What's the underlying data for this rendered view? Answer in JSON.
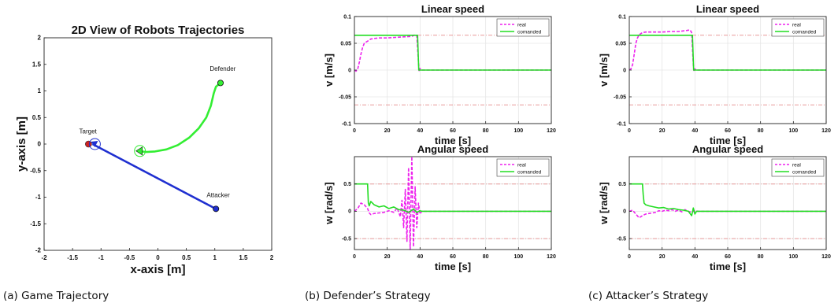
{
  "captions": {
    "a": "(a) Game Trajectory",
    "b": "(b) Defender’s Strategy",
    "c": "(c) Attacker’s Strategy"
  },
  "colors": {
    "attacker": "#1f2fd0",
    "defender": "#33ee33",
    "real": "#ee22ee",
    "commanded": "#22dd22",
    "limit": "#e89a9a",
    "target": "#cc2222"
  },
  "chart_data": [
    {
      "id": "traj",
      "type": "line",
      "title": "2D View of Robots Trajectories",
      "xlabel": "x-axis [m]",
      "ylabel": "y-axis [m]",
      "xlim": [
        -2,
        2
      ],
      "ylim": [
        -2,
        2
      ],
      "xticks": [
        -2,
        -1.5,
        -1,
        -0.5,
        0,
        0.5,
        1,
        1.5,
        2
      ],
      "yticks": [
        -2,
        -1.5,
        -1,
        -0.5,
        0,
        0.5,
        1,
        1.5,
        2
      ],
      "xticklabels": [
        "-2",
        "-1.5",
        "-1",
        "-0.5",
        "0",
        "0.5",
        "1",
        "1.5",
        "2"
      ],
      "yticklabels": [
        "-2",
        "-1.5",
        "-1",
        "-0.5",
        "0",
        "0.5",
        "1",
        "1.5",
        "2"
      ],
      "grid": false,
      "series": [
        {
          "name": "",
          "color_key": "attacker",
          "x": [
            1.02,
            -1.15
          ],
          "y": [
            -1.22,
            0.0
          ]
        },
        {
          "name": "",
          "color_key": "defender",
          "x": [
            1.1,
            1.02,
            0.98,
            0.93,
            0.85,
            0.72,
            0.55,
            0.35,
            0.15,
            -0.05,
            -0.2,
            -0.28,
            -0.33
          ],
          "y": [
            1.15,
            1.08,
            0.95,
            0.72,
            0.5,
            0.3,
            0.12,
            -0.02,
            -0.1,
            -0.14,
            -0.15,
            -0.14,
            -0.13
          ]
        }
      ],
      "annotations": [
        {
          "text": "Target",
          "x": -1.23,
          "y": 0.2
        },
        {
          "text": "Defender",
          "x": 1.14,
          "y": 1.38
        },
        {
          "text": "Attacker",
          "x": 1.06,
          "y": -1.0
        }
      ],
      "markers": [
        {
          "name": "attacker-start",
          "x": 1.02,
          "y": -1.22,
          "color_key": "attacker"
        },
        {
          "name": "defender-start",
          "x": 1.1,
          "y": 1.15,
          "color_key": "defender"
        },
        {
          "name": "target",
          "x": -1.22,
          "y": 0.0,
          "color_key": "target"
        }
      ]
    },
    {
      "id": "b-linear",
      "type": "line",
      "title": "Linear speed",
      "xlabel": "time [s]",
      "ylabel": "v [m/s]",
      "xlim": [
        0,
        120
      ],
      "ylim": [
        -0.1,
        0.1
      ],
      "grid": true,
      "xticks": [
        0,
        20,
        40,
        60,
        80,
        100,
        120
      ],
      "yticks": [
        -0.1,
        -0.05,
        0,
        0.05,
        0.1
      ],
      "xticklabels": [
        "0",
        "20",
        "40",
        "60",
        "80",
        "100",
        "120"
      ],
      "yticklabels": [
        "-0.1",
        "-0.05",
        "0",
        "0.05",
        "0.1"
      ],
      "legend": "top-right",
      "limits": [
        0.065,
        -0.065
      ],
      "series": [
        {
          "name": "real",
          "color_key": "real",
          "dash": true,
          "x": [
            0,
            1,
            2,
            3,
            4,
            5,
            6,
            7,
            8,
            9,
            10,
            12,
            15,
            20,
            25,
            30,
            35,
            37,
            38,
            38.5,
            39,
            39.5,
            40,
            41,
            42,
            50,
            120
          ],
          "y": [
            0,
            -0.002,
            0.002,
            0.015,
            0.03,
            0.042,
            0.05,
            0.052,
            0.054,
            0.056,
            0.058,
            0.059,
            0.06,
            0.06,
            0.061,
            0.062,
            0.063,
            0.066,
            0.064,
            0.04,
            0.015,
            -0.003,
            0.003,
            0,
            0,
            0,
            0
          ]
        },
        {
          "name": "comanded",
          "color_key": "commanded",
          "dash": false,
          "x": [
            0,
            38.5,
            39.2,
            120
          ],
          "y": [
            0.065,
            0.065,
            0,
            0
          ]
        }
      ]
    },
    {
      "id": "b-angular",
      "type": "line",
      "title": "Angular speed",
      "xlabel": "time [s]",
      "ylabel": "w [rad/s]",
      "xlim": [
        0,
        120
      ],
      "ylim": [
        -0.7,
        1.0
      ],
      "grid": true,
      "xticks": [
        0,
        20,
        40,
        60,
        80,
        100,
        120
      ],
      "yticks": [
        -0.5,
        0,
        0.5
      ],
      "xticklabels": [
        "0",
        "20",
        "40",
        "60",
        "80",
        "100",
        "120"
      ],
      "yticklabels": [
        "-0.5",
        "0",
        "0.5"
      ],
      "legend": "top-right",
      "limits": [
        0.5,
        -0.5
      ],
      "series": [
        {
          "name": "real",
          "color_key": "real",
          "dash": true,
          "x": [
            0,
            2,
            4,
            6,
            8,
            9,
            10,
            12,
            15,
            18,
            21,
            24,
            26,
            28,
            29,
            30,
            31,
            32,
            33,
            34,
            35,
            36,
            37,
            38,
            39,
            40,
            41,
            45,
            120
          ],
          "y": [
            0,
            0.05,
            0.15,
            0.12,
            0.05,
            -0.03,
            -0.06,
            -0.04,
            -0.03,
            -0.02,
            0.01,
            -0.02,
            0.06,
            -0.1,
            0.2,
            -0.3,
            0.4,
            -0.55,
            0.8,
            -0.7,
            1.0,
            -0.65,
            0.45,
            -0.3,
            0.15,
            -0.05,
            0,
            0,
            0
          ]
        },
        {
          "name": "comanded",
          "color_key": "commanded",
          "dash": false,
          "x": [
            0,
            8,
            8.5,
            9,
            10,
            12,
            15,
            18,
            21,
            24,
            27,
            30,
            33,
            36,
            38,
            40,
            41,
            120
          ],
          "y": [
            0.5,
            0.5,
            0.15,
            0.1,
            0.18,
            0.12,
            0.08,
            0.1,
            0.05,
            0.08,
            0.03,
            0.02,
            -0.02,
            0.04,
            -0.02,
            0.01,
            0,
            0
          ]
        }
      ]
    },
    {
      "id": "c-linear",
      "type": "line",
      "title": "Linear speed",
      "xlabel": "time [s]",
      "ylabel": "v [m/s]",
      "xlim": [
        0,
        120
      ],
      "ylim": [
        -0.1,
        0.1
      ],
      "grid": true,
      "xticks": [
        0,
        20,
        40,
        60,
        80,
        100,
        120
      ],
      "yticks": [
        -0.1,
        -0.05,
        0,
        0.05,
        0.1
      ],
      "xticklabels": [
        "0",
        "20",
        "40",
        "60",
        "80",
        "100",
        "120"
      ],
      "yticklabels": [
        "-0.1",
        "-0.05",
        "0",
        "0.05",
        "0.1"
      ],
      "legend": "top-right",
      "limits": [
        0.065,
        -0.065
      ],
      "series": [
        {
          "name": "real",
          "color_key": "real",
          "dash": true,
          "x": [
            0,
            1,
            2,
            3,
            4,
            5,
            6,
            7,
            8,
            10,
            15,
            20,
            25,
            30,
            35,
            37,
            38,
            38.5,
            39,
            39.5,
            40,
            41,
            42,
            50,
            120
          ],
          "y": [
            0,
            0.002,
            0.01,
            0.03,
            0.05,
            0.06,
            0.066,
            0.068,
            0.07,
            0.071,
            0.071,
            0.071,
            0.072,
            0.072,
            0.074,
            0.075,
            0.07,
            0.04,
            0.01,
            -0.003,
            0.002,
            0,
            0,
            0,
            0
          ]
        },
        {
          "name": "comanded",
          "color_key": "commanded",
          "dash": false,
          "x": [
            0,
            38.5,
            39.2,
            120
          ],
          "y": [
            0.065,
            0.065,
            0,
            0
          ]
        }
      ]
    },
    {
      "id": "c-angular",
      "type": "line",
      "title": "Angular speed",
      "xlabel": "time [s]",
      "ylabel": "w [rad/s]",
      "xlim": [
        0,
        120
      ],
      "ylim": [
        -0.7,
        1.0
      ],
      "grid": true,
      "xticks": [
        0,
        20,
        40,
        60,
        80,
        100,
        120
      ],
      "yticks": [
        -0.5,
        0,
        0.5
      ],
      "xticklabels": [
        "0",
        "20",
        "40",
        "60",
        "80",
        "100",
        "120"
      ],
      "yticklabels": [
        "-0.5",
        "0",
        "0.5"
      ],
      "legend": "top-right",
      "limits": [
        0.5,
        -0.5
      ],
      "series": [
        {
          "name": "real",
          "color_key": "real",
          "dash": true,
          "x": [
            0,
            2,
            4,
            6,
            8,
            10,
            12,
            14,
            16,
            18,
            20,
            22,
            24,
            26,
            28,
            30,
            32,
            34,
            36,
            38,
            40,
            42,
            120
          ],
          "y": [
            0,
            0.02,
            -0.05,
            -0.12,
            -0.08,
            -0.05,
            -0.04,
            -0.03,
            -0.02,
            0.01,
            0.0,
            0.02,
            0.01,
            0.03,
            0.0,
            0.02,
            -0.01,
            0.03,
            0.0,
            -0.02,
            0.01,
            0,
            0
          ]
        },
        {
          "name": "comanded",
          "color_key": "commanded",
          "dash": false,
          "x": [
            0,
            8,
            8.5,
            9,
            10,
            12,
            15,
            18,
            21,
            24,
            27,
            30,
            33,
            36,
            38,
            39,
            40,
            41,
            120
          ],
          "y": [
            0.5,
            0.5,
            0.3,
            0.15,
            0.12,
            0.1,
            0.08,
            0.06,
            0.07,
            0.04,
            0.05,
            0.03,
            0.02,
            0.0,
            -0.08,
            0.06,
            -0.05,
            0,
            0
          ]
        }
      ]
    }
  ]
}
